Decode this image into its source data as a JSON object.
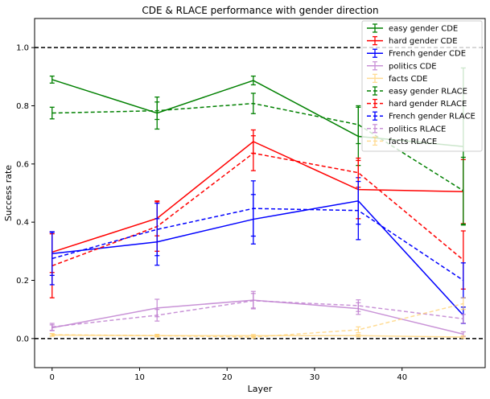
{
  "chart_data": {
    "type": "line",
    "title": "CDE & RLACE performance with gender direction",
    "xlabel": "Layer",
    "ylabel": "Success rate",
    "xlim": [
      -2,
      49.5
    ],
    "ylim": [
      -0.1,
      1.1
    ],
    "xticks": [
      0,
      10,
      20,
      30,
      40
    ],
    "yticks": [
      0.0,
      0.2,
      0.4,
      0.6,
      0.8,
      1.0
    ],
    "tick_labels_x": [
      "0",
      "10",
      "20",
      "30",
      "40"
    ],
    "tick_labels_y": [
      "0.0",
      "0.2",
      "0.4",
      "0.6",
      "0.8",
      "1.0"
    ],
    "reference_lines": [
      1.0,
      0.0
    ],
    "legend_position": "top-right",
    "x": [
      0,
      12,
      23,
      35,
      47
    ],
    "series": [
      {
        "name": "easy gender CDE",
        "color": "#008000",
        "style": "solid",
        "alpha": 1.0,
        "values": [
          0.89,
          0.775,
          0.887,
          0.695,
          0.66
        ],
        "errors": [
          0.012,
          0.055,
          0.015,
          0.1,
          0.27
        ]
      },
      {
        "name": "hard gender CDE",
        "color": "#ff0000",
        "style": "solid",
        "alpha": 1.0,
        "values": [
          0.297,
          0.413,
          0.677,
          0.512,
          0.505
        ],
        "errors": [
          0.07,
          0.06,
          0.04,
          0.1,
          0.11
        ]
      },
      {
        "name": "French gender CDE",
        "color": "#0000ff",
        "style": "solid",
        "alpha": 1.0,
        "values": [
          0.292,
          0.332,
          0.41,
          0.473,
          0.08
        ],
        "errors": [
          0.075,
          0.08,
          0.085,
          0.08,
          0.028
        ]
      },
      {
        "name": "politics CDE",
        "color": "#c080d0",
        "style": "solid",
        "alpha": 0.85,
        "values": [
          0.037,
          0.105,
          0.132,
          0.103,
          0.015
        ],
        "errors": [
          0.01,
          0.03,
          0.03,
          0.02,
          0.008
        ]
      },
      {
        "name": "facts CDE",
        "color": "#ffd070",
        "style": "solid",
        "alpha": 0.75,
        "values": [
          0.012,
          0.01,
          0.01,
          0.01,
          0.005
        ],
        "errors": [
          0.004,
          0.004,
          0.004,
          0.004,
          0.004
        ]
      },
      {
        "name": "easy gender RLACE",
        "color": "#008000",
        "style": "dashed",
        "alpha": 1.0,
        "values": [
          0.775,
          0.783,
          0.808,
          0.735,
          0.508
        ],
        "errors": [
          0.02,
          0.03,
          0.035,
          0.065,
          0.115
        ]
      },
      {
        "name": "hard gender RLACE",
        "color": "#ff0000",
        "style": "dashed",
        "alpha": 1.0,
        "values": [
          0.25,
          0.385,
          0.637,
          0.57,
          0.27
        ],
        "errors": [
          0.11,
          0.085,
          0.06,
          0.05,
          0.1
        ]
      },
      {
        "name": "French gender RLACE",
        "color": "#0000ff",
        "style": "dashed",
        "alpha": 1.0,
        "values": [
          0.275,
          0.375,
          0.447,
          0.44,
          0.2
        ],
        "errors": [
          0.09,
          0.09,
          0.095,
          0.1,
          0.06
        ]
      },
      {
        "name": "politics RLACE",
        "color": "#c080d0",
        "style": "dashed",
        "alpha": 0.85,
        "values": [
          0.04,
          0.08,
          0.13,
          0.113,
          0.068
        ],
        "errors": [
          0.012,
          0.02,
          0.025,
          0.02,
          0.015
        ]
      },
      {
        "name": "facts RLACE",
        "color": "#ffd070",
        "style": "dashed",
        "alpha": 0.75,
        "values": [
          0.013,
          0.01,
          0.005,
          0.03,
          0.12
        ],
        "errors": [
          0.004,
          0.004,
          0.004,
          0.01,
          0.02
        ]
      }
    ]
  }
}
